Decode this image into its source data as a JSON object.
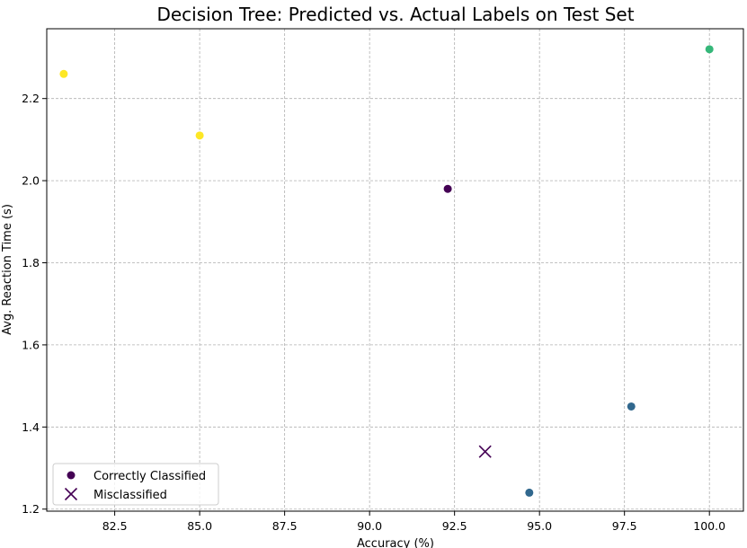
{
  "chart_data": {
    "type": "scatter",
    "title": "Decision Tree: Predicted vs. Actual Labels on Test Set",
    "xlabel": "Accuracy (%)",
    "ylabel": "Avg. Reaction Time (s)",
    "xlim": [
      80.5,
      101.0
    ],
    "ylim": [
      1.195,
      2.37
    ],
    "xticks": [
      82.5,
      85.0,
      87.5,
      90.0,
      92.5,
      95.0,
      97.5,
      100.0
    ],
    "xtick_labels": [
      "82.5",
      "85.0",
      "87.5",
      "90.0",
      "92.5",
      "95.0",
      "97.5",
      "100.0"
    ],
    "yticks": [
      1.2,
      1.4,
      1.6,
      1.8,
      2.0,
      2.2
    ],
    "ytick_labels": [
      "1.2",
      "1.4",
      "1.6",
      "1.8",
      "2.0",
      "2.2"
    ],
    "grid": true,
    "legend_position": "lower-left",
    "series": [
      {
        "name": "Correctly Classified",
        "marker": "circle",
        "points": [
          {
            "x": 81.0,
            "y": 2.26,
            "color": "#fde725"
          },
          {
            "x": 85.0,
            "y": 2.11,
            "color": "#fde725"
          },
          {
            "x": 92.3,
            "y": 1.98,
            "color": "#440154"
          },
          {
            "x": 94.7,
            "y": 1.24,
            "color": "#31688e"
          },
          {
            "x": 97.7,
            "y": 1.45,
            "color": "#31688e"
          },
          {
            "x": 100.0,
            "y": 2.32,
            "color": "#35b779"
          }
        ]
      },
      {
        "name": "Misclassified",
        "marker": "x",
        "points": [
          {
            "x": 93.4,
            "y": 1.34,
            "color": "#440154"
          }
        ]
      }
    ],
    "legend": [
      {
        "label": "Correctly Classified",
        "marker": "circle",
        "color": "#440154"
      },
      {
        "label": "Misclassified",
        "marker": "x",
        "color": "#440154"
      }
    ]
  }
}
